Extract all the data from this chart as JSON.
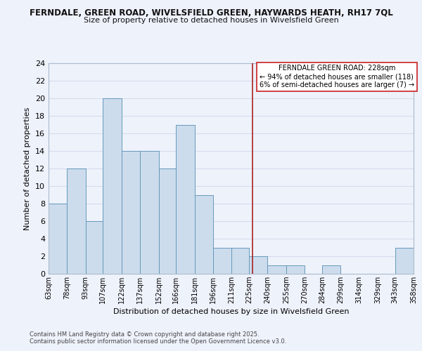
{
  "title_line1": "FERNDALE, GREEN ROAD, WIVELSFIELD GREEN, HAYWARDS HEATH, RH17 7QL",
  "title_line2": "Size of property relative to detached houses in Wivelsfield Green",
  "xlabel": "Distribution of detached houses by size in Wivelsfield Green",
  "ylabel": "Number of detached properties",
  "bin_edges": [
    63,
    78,
    93,
    107,
    122,
    137,
    152,
    166,
    181,
    196,
    211,
    225,
    240,
    255,
    270,
    284,
    299,
    314,
    329,
    343,
    358
  ],
  "bar_heights": [
    8,
    12,
    6,
    20,
    14,
    14,
    12,
    17,
    9,
    3,
    3,
    2,
    1,
    1,
    0,
    1,
    0,
    0,
    0,
    3
  ],
  "bar_color": "#ccdcec",
  "bar_edge_color": "#6699bb",
  "grid_color": "#d4dded",
  "background_color": "#eef2fb",
  "vline_x": 228,
  "vline_color": "#aa2222",
  "annotation_line1": "FERNDALE GREEN ROAD: 228sqm",
  "annotation_line2": "← 94% of detached houses are smaller (118)",
  "annotation_line3": "6% of semi-detached houses are larger (7) →",
  "annotation_box_color": "#ffffff",
  "annotation_box_edge_color": "#cc2222",
  "ylim": [
    0,
    24
  ],
  "yticks": [
    0,
    2,
    4,
    6,
    8,
    10,
    12,
    14,
    16,
    18,
    20,
    22,
    24
  ],
  "footer_line1": "Contains HM Land Registry data © Crown copyright and database right 2025.",
  "footer_line2": "Contains public sector information licensed under the Open Government Licence v3.0.",
  "tick_labels": [
    "63sqm",
    "78sqm",
    "93sqm",
    "107sqm",
    "122sqm",
    "137sqm",
    "152sqm",
    "166sqm",
    "181sqm",
    "196sqm",
    "211sqm",
    "225sqm",
    "240sqm",
    "255sqm",
    "270sqm",
    "284sqm",
    "299sqm",
    "314sqm",
    "329sqm",
    "343sqm",
    "358sqm"
  ]
}
